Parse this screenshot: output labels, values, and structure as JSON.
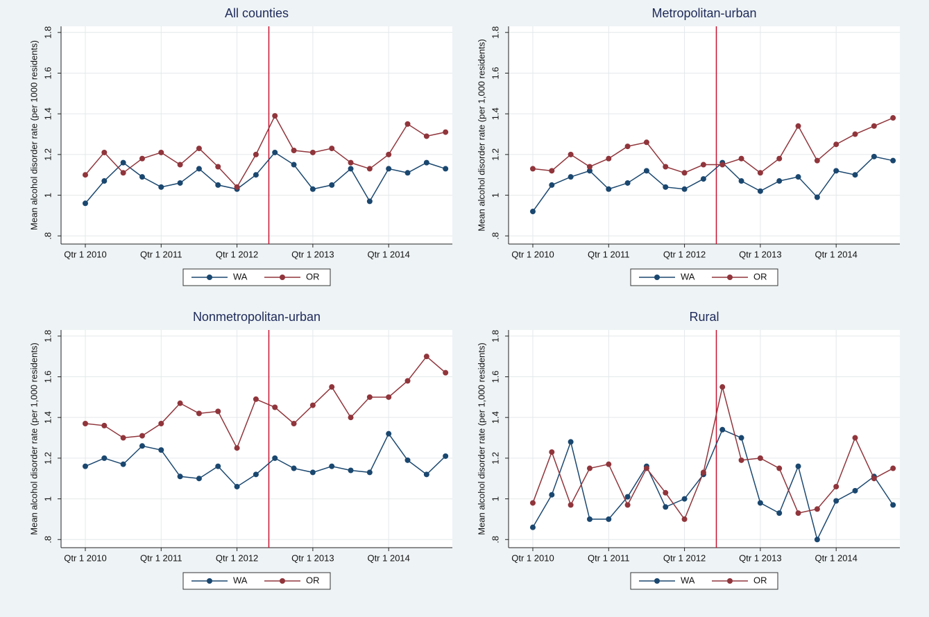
{
  "chart_data": [
    {
      "type": "line",
      "title": "All counties",
      "y_label": "Mean alcohol disorder rate (per 1000 residents)",
      "x": [
        2010,
        2010.25,
        2010.5,
        2010.75,
        2011,
        2011.25,
        2011.5,
        2011.75,
        2012,
        2012.25,
        2012.5,
        2012.75,
        2013,
        2013.25,
        2013.5,
        2013.75,
        2014,
        2014.25,
        2014.5,
        2014.75
      ],
      "xlim": [
        2009.68,
        2014.84
      ],
      "xticks": [
        {
          "value": 2010,
          "label": "Qtr 1 2010"
        },
        {
          "value": 2011,
          "label": "Qtr 1 2011"
        },
        {
          "value": 2012,
          "label": "Qtr 1 2012"
        },
        {
          "value": 2013,
          "label": "Qtr 1 2013"
        },
        {
          "value": 2014,
          "label": "Qtr 1 2014"
        }
      ],
      "ylim": [
        0.76,
        1.83
      ],
      "yticks": [
        {
          "value": 0.8,
          "label": ".8"
        },
        1,
        1.2,
        1.4,
        1.6,
        1.8
      ],
      "grid": true,
      "legend": "bottom",
      "reference_line_x": 2012.42,
      "reference_line_color": "#c8102e",
      "series": [
        {
          "name": "WA",
          "color": "#1a476f",
          "values": [
            0.96,
            1.07,
            1.16,
            1.09,
            1.04,
            1.06,
            1.13,
            1.05,
            1.03,
            1.1,
            1.21,
            1.15,
            1.03,
            1.05,
            1.13,
            0.97,
            1.13,
            1.11,
            1.16,
            1.13
          ]
        },
        {
          "name": "OR",
          "color": "#90353b",
          "values": [
            1.1,
            1.21,
            1.11,
            1.18,
            1.21,
            1.15,
            1.23,
            1.14,
            1.04,
            1.2,
            1.39,
            1.22,
            1.21,
            1.23,
            1.16,
            1.13,
            1.2,
            1.35,
            1.29,
            1.31
          ]
        }
      ]
    },
    {
      "type": "line",
      "title": "Metropolitan-urban",
      "y_label": "Mean alcohol disorder rate (per 1,000 residents)",
      "x": [
        2010,
        2010.25,
        2010.5,
        2010.75,
        2011,
        2011.25,
        2011.5,
        2011.75,
        2012,
        2012.25,
        2012.5,
        2012.75,
        2013,
        2013.25,
        2013.5,
        2013.75,
        2014,
        2014.25,
        2014.5,
        2014.75
      ],
      "xlim": [
        2009.68,
        2014.84
      ],
      "xticks": [
        {
          "value": 2010,
          "label": "Qtr 1 2010"
        },
        {
          "value": 2011,
          "label": "Qtr 1 2011"
        },
        {
          "value": 2012,
          "label": "Qtr 1 2012"
        },
        {
          "value": 2013,
          "label": "Qtr 1 2013"
        },
        {
          "value": 2014,
          "label": "Qtr 1 2014"
        }
      ],
      "ylim": [
        0.76,
        1.83
      ],
      "yticks": [
        {
          "value": 0.8,
          "label": ".8"
        },
        1,
        1.2,
        1.4,
        1.6,
        1.8
      ],
      "grid": true,
      "legend": "bottom",
      "reference_line_x": 2012.42,
      "reference_line_color": "#c8102e",
      "series": [
        {
          "name": "WA",
          "color": "#1a476f",
          "values": [
            0.92,
            1.05,
            1.09,
            1.12,
            1.03,
            1.06,
            1.12,
            1.04,
            1.03,
            1.08,
            1.16,
            1.07,
            1.02,
            1.07,
            1.09,
            0.99,
            1.12,
            1.1,
            1.19,
            1.17
          ]
        },
        {
          "name": "OR",
          "color": "#90353b",
          "values": [
            1.13,
            1.12,
            1.2,
            1.14,
            1.18,
            1.24,
            1.26,
            1.14,
            1.11,
            1.15,
            1.15,
            1.18,
            1.11,
            1.18,
            1.34,
            1.17,
            1.25,
            1.3,
            1.34,
            1.38
          ]
        }
      ]
    },
    {
      "type": "line",
      "title": "Nonmetropolitan-urban",
      "y_label": "Mean alcohol disorder rate (per 1,000 residents)",
      "x": [
        2010,
        2010.25,
        2010.5,
        2010.75,
        2011,
        2011.25,
        2011.5,
        2011.75,
        2012,
        2012.25,
        2012.5,
        2012.75,
        2013,
        2013.25,
        2013.5,
        2013.75,
        2014,
        2014.25,
        2014.5,
        2014.75
      ],
      "xlim": [
        2009.68,
        2014.84
      ],
      "xticks": [
        {
          "value": 2010,
          "label": "Qtr 1 2010"
        },
        {
          "value": 2011,
          "label": "Qtr 1 2011"
        },
        {
          "value": 2012,
          "label": "Qtr 1 2012"
        },
        {
          "value": 2013,
          "label": "Qtr 1 2013"
        },
        {
          "value": 2014,
          "label": "Qtr 1 2014"
        }
      ],
      "ylim": [
        0.76,
        1.83
      ],
      "yticks": [
        {
          "value": 0.8,
          "label": ".8"
        },
        1,
        1.2,
        1.4,
        1.6,
        1.8
      ],
      "grid": true,
      "legend": "bottom",
      "reference_line_x": 2012.42,
      "reference_line_color": "#c8102e",
      "series": [
        {
          "name": "WA",
          "color": "#1a476f",
          "values": [
            1.16,
            1.2,
            1.17,
            1.26,
            1.24,
            1.11,
            1.1,
            1.16,
            1.06,
            1.12,
            1.2,
            1.15,
            1.13,
            1.16,
            1.14,
            1.13,
            1.32,
            1.19,
            1.12,
            1.21
          ]
        },
        {
          "name": "OR",
          "color": "#90353b",
          "values": [
            1.37,
            1.36,
            1.3,
            1.31,
            1.37,
            1.47,
            1.42,
            1.43,
            1.25,
            1.49,
            1.45,
            1.37,
            1.46,
            1.55,
            1.4,
            1.5,
            1.5,
            1.58,
            1.7,
            1.62
          ]
        }
      ]
    },
    {
      "type": "line",
      "title": "Rural",
      "y_label": "Mean alcohol disorder rate (per 1,000 residents)",
      "x": [
        2010,
        2010.25,
        2010.5,
        2010.75,
        2011,
        2011.25,
        2011.5,
        2011.75,
        2012,
        2012.25,
        2012.5,
        2012.75,
        2013,
        2013.25,
        2013.5,
        2013.75,
        2014,
        2014.25,
        2014.5,
        2014.75
      ],
      "xlim": [
        2009.68,
        2014.84
      ],
      "xticks": [
        {
          "value": 2010,
          "label": "Qtr 1 2010"
        },
        {
          "value": 2011,
          "label": "Qtr 1 2011"
        },
        {
          "value": 2012,
          "label": "Qtr 1 2012"
        },
        {
          "value": 2013,
          "label": "Qtr 1 2013"
        },
        {
          "value": 2014,
          "label": "Qtr 1 2014"
        }
      ],
      "ylim": [
        0.76,
        1.83
      ],
      "yticks": [
        {
          "value": 0.8,
          "label": ".8"
        },
        1,
        1.2,
        1.4,
        1.6,
        1.8
      ],
      "grid": true,
      "legend": "bottom",
      "reference_line_x": 2012.42,
      "reference_line_color": "#c8102e",
      "series": [
        {
          "name": "WA",
          "color": "#1a476f",
          "values": [
            0.86,
            1.02,
            1.28,
            0.9,
            0.9,
            1.01,
            1.16,
            0.96,
            1.0,
            1.12,
            1.34,
            1.3,
            0.98,
            0.93,
            1.16,
            0.8,
            0.99,
            1.04,
            1.11,
            0.97
          ]
        },
        {
          "name": "OR",
          "color": "#90353b",
          "values": [
            0.98,
            1.23,
            0.97,
            1.15,
            1.17,
            0.97,
            1.15,
            1.03,
            0.9,
            1.13,
            1.55,
            1.19,
            1.2,
            1.15,
            0.93,
            0.95,
            1.06,
            1.3,
            1.1,
            1.15
          ]
        }
      ]
    }
  ]
}
